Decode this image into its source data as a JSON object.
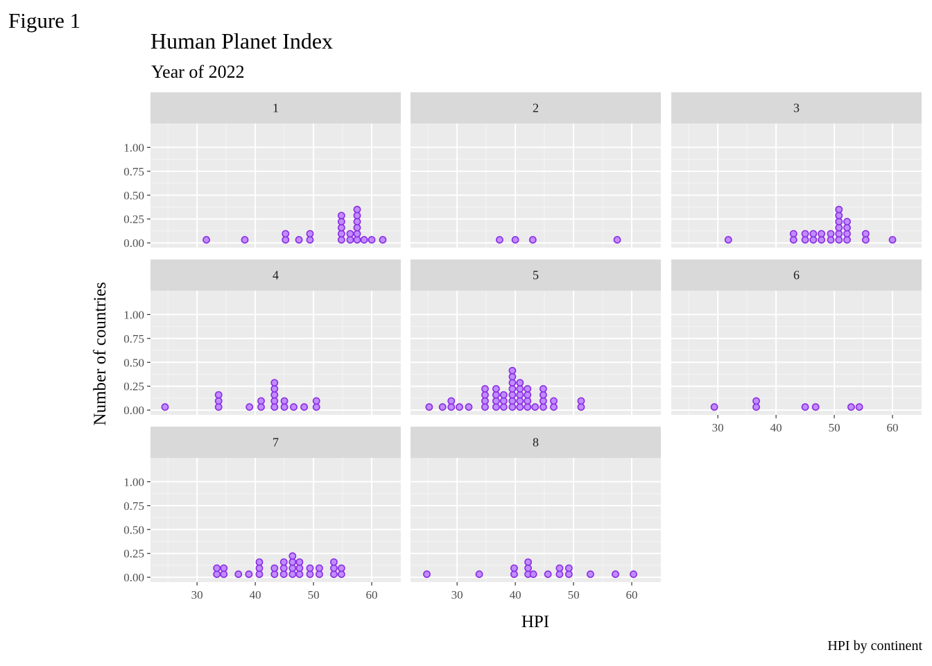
{
  "figure_label": "Figure 1",
  "caption": "HPI by continent",
  "colors": {
    "panel_bg": "#EBEBEB",
    "grid_major": "#FFFFFF",
    "grid_minor": "#F5F5F5",
    "strip_bg": "#D9D9D9",
    "point_fill": "#C08CFF",
    "point_stroke": "#8A2BE2",
    "tick_text": "#4D4D4D"
  },
  "chart_data": {
    "type": "dotplot",
    "title": "Human Planet Index",
    "subtitle": "Year of 2022",
    "xlabel": "HPI",
    "ylabel": "Number of countries",
    "facet_by": "continent",
    "xlim": [
      22,
      65
    ],
    "ylim": [
      -0.05,
      1.25
    ],
    "x_ticks": [
      30,
      40,
      50,
      60
    ],
    "x_tick_labels": [
      "30",
      "40",
      "50",
      "60"
    ],
    "y_ticks": [
      0,
      0.25,
      0.5,
      0.75,
      1.0
    ],
    "y_tick_labels": [
      "0.00",
      "0.25",
      "0.50",
      "0.75",
      "1.00"
    ],
    "stack_step": 0.0635,
    "panels": [
      {
        "label": "1",
        "stacks": [
          {
            "x": 31.6,
            "n": 1
          },
          {
            "x": 38.2,
            "n": 1
          },
          {
            "x": 45.2,
            "n": 2
          },
          {
            "x": 47.5,
            "n": 1
          },
          {
            "x": 49.4,
            "n": 2
          },
          {
            "x": 54.8,
            "n": 5
          },
          {
            "x": 56.3,
            "n": 2
          },
          {
            "x": 57.5,
            "n": 6
          },
          {
            "x": 58.7,
            "n": 1
          },
          {
            "x": 60.0,
            "n": 1
          },
          {
            "x": 61.9,
            "n": 1
          }
        ]
      },
      {
        "label": "2",
        "stacks": [
          {
            "x": 37.3,
            "n": 1
          },
          {
            "x": 40.0,
            "n": 1
          },
          {
            "x": 43.0,
            "n": 1
          },
          {
            "x": 57.5,
            "n": 1
          }
        ]
      },
      {
        "label": "3",
        "stacks": [
          {
            "x": 31.8,
            "n": 1
          },
          {
            "x": 43.0,
            "n": 2
          },
          {
            "x": 45.0,
            "n": 2
          },
          {
            "x": 46.4,
            "n": 2
          },
          {
            "x": 47.8,
            "n": 2
          },
          {
            "x": 49.4,
            "n": 2
          },
          {
            "x": 50.8,
            "n": 6
          },
          {
            "x": 52.2,
            "n": 4
          },
          {
            "x": 55.4,
            "n": 2
          },
          {
            "x": 60.0,
            "n": 1
          }
        ]
      },
      {
        "label": "4",
        "stacks": [
          {
            "x": 24.5,
            "n": 1
          },
          {
            "x": 33.7,
            "n": 3
          },
          {
            "x": 39.0,
            "n": 1
          },
          {
            "x": 41.0,
            "n": 2
          },
          {
            "x": 43.3,
            "n": 5
          },
          {
            "x": 45.0,
            "n": 2
          },
          {
            "x": 46.6,
            "n": 1
          },
          {
            "x": 48.4,
            "n": 1
          },
          {
            "x": 50.5,
            "n": 2
          }
        ]
      },
      {
        "label": "5",
        "stacks": [
          {
            "x": 25.2,
            "n": 1
          },
          {
            "x": 27.5,
            "n": 1
          },
          {
            "x": 29.0,
            "n": 2
          },
          {
            "x": 30.4,
            "n": 1
          },
          {
            "x": 32.0,
            "n": 1
          },
          {
            "x": 34.8,
            "n": 4
          },
          {
            "x": 36.7,
            "n": 4
          },
          {
            "x": 38.0,
            "n": 3
          },
          {
            "x": 39.5,
            "n": 7
          },
          {
            "x": 40.8,
            "n": 5
          },
          {
            "x": 42.1,
            "n": 4
          },
          {
            "x": 43.4,
            "n": 1
          },
          {
            "x": 44.8,
            "n": 4
          },
          {
            "x": 46.6,
            "n": 2
          },
          {
            "x": 51.3,
            "n": 2
          }
        ]
      },
      {
        "label": "6",
        "stacks": [
          {
            "x": 29.4,
            "n": 1
          },
          {
            "x": 36.6,
            "n": 2
          },
          {
            "x": 45.0,
            "n": 1
          },
          {
            "x": 46.8,
            "n": 1
          },
          {
            "x": 52.9,
            "n": 1
          },
          {
            "x": 54.3,
            "n": 1
          }
        ]
      },
      {
        "label": "7",
        "stacks": [
          {
            "x": 33.4,
            "n": 2
          },
          {
            "x": 34.6,
            "n": 2
          },
          {
            "x": 37.1,
            "n": 1
          },
          {
            "x": 38.9,
            "n": 1
          },
          {
            "x": 40.7,
            "n": 3
          },
          {
            "x": 43.3,
            "n": 2
          },
          {
            "x": 44.9,
            "n": 3
          },
          {
            "x": 46.4,
            "n": 4
          },
          {
            "x": 47.6,
            "n": 3
          },
          {
            "x": 49.4,
            "n": 2
          },
          {
            "x": 51.0,
            "n": 2
          },
          {
            "x": 53.5,
            "n": 3
          },
          {
            "x": 54.8,
            "n": 2
          }
        ]
      },
      {
        "label": "8",
        "stacks": [
          {
            "x": 24.8,
            "n": 1
          },
          {
            "x": 33.8,
            "n": 1
          },
          {
            "x": 39.8,
            "n": 2
          },
          {
            "x": 42.2,
            "n": 3
          },
          {
            "x": 43.1,
            "n": 1
          },
          {
            "x": 45.6,
            "n": 1
          },
          {
            "x": 47.6,
            "n": 2
          },
          {
            "x": 49.2,
            "n": 2
          },
          {
            "x": 52.9,
            "n": 1
          },
          {
            "x": 57.2,
            "n": 1
          },
          {
            "x": 60.3,
            "n": 1
          }
        ]
      }
    ]
  }
}
